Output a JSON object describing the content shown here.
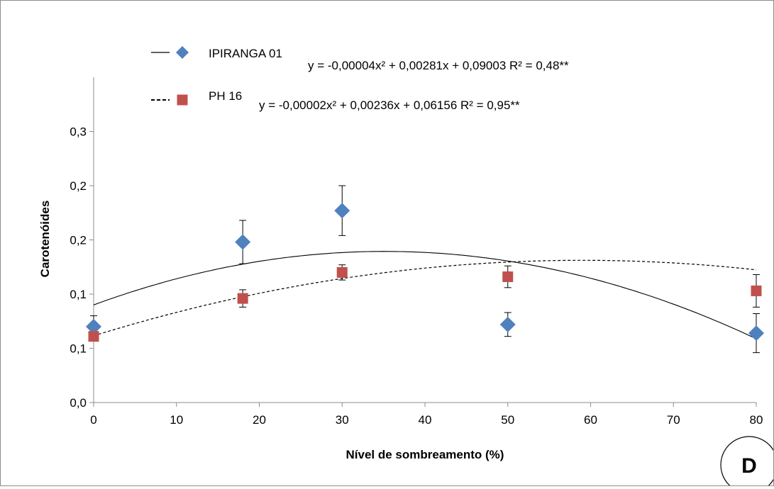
{
  "chart_data": {
    "type": "scatter",
    "xlabel": "Nível de sombreamento (%)",
    "ylabel": "Carotenóides",
    "xlim": [
      0,
      80
    ],
    "ylim": [
      0,
      0.3
    ],
    "x_ticks": [
      0,
      10,
      20,
      30,
      40,
      50,
      60,
      70,
      80
    ],
    "y_ticks": [
      {
        "value": 0.0,
        "label": "0,0"
      },
      {
        "value": 0.05,
        "label": "0,1"
      },
      {
        "value": 0.1,
        "label": "0,1"
      },
      {
        "value": 0.15,
        "label": "0,2"
      },
      {
        "value": 0.2,
        "label": "0,2"
      },
      {
        "value": 0.25,
        "label": "0,3"
      }
    ],
    "grid": false,
    "legend_position": "top",
    "panel_label": "D",
    "series": [
      {
        "name": "IPIRANGA 01",
        "marker": "diamond",
        "color": "#4f81bd",
        "line_style": "solid",
        "equation": "y = -0,00004x² + 0,00281x + 0,09003 R² = 0,48**",
        "coefficients": {
          "a": -4e-05,
          "b": 0.00281,
          "c": 0.09003
        },
        "points": [
          {
            "x": 0,
            "y": 0.07,
            "err": 0.01
          },
          {
            "x": 18,
            "y": 0.148,
            "err": 0.02
          },
          {
            "x": 30,
            "y": 0.177,
            "err": 0.023
          },
          {
            "x": 50,
            "y": 0.072,
            "err": 0.011
          },
          {
            "x": 80,
            "y": 0.064,
            "err": 0.018
          }
        ]
      },
      {
        "name": "PH 16",
        "marker": "square",
        "color": "#c0504d",
        "line_style": "dashed",
        "equation": "y = -0,00002x² + 0,00236x + 0,06156 R² = 0,95**",
        "coefficients": {
          "a": -2e-05,
          "b": 0.00236,
          "c": 0.06156
        },
        "points": [
          {
            "x": 0,
            "y": 0.061,
            "err": 0.004
          },
          {
            "x": 18,
            "y": 0.096,
            "err": 0.008
          },
          {
            "x": 30,
            "y": 0.12,
            "err": 0.007
          },
          {
            "x": 50,
            "y": 0.116,
            "err": 0.01
          },
          {
            "x": 80,
            "y": 0.103,
            "err": 0.015
          }
        ]
      }
    ]
  }
}
